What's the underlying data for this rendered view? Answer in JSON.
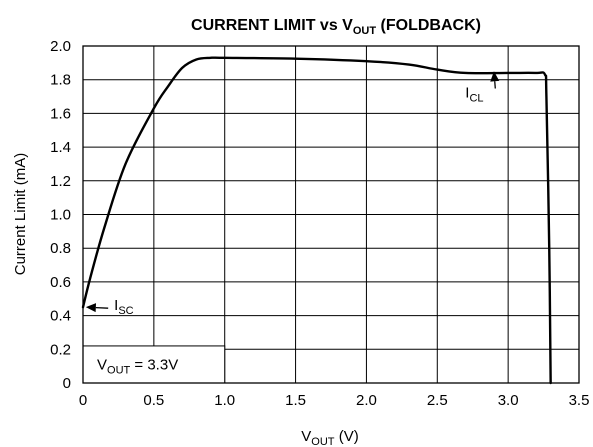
{
  "chart_data": {
    "type": "line",
    "title": {
      "main": "CURRENT LIMIT vs V",
      "sub": "OUT",
      "suffix": " (FOLDBACK)"
    },
    "xlabel": {
      "main": "V",
      "sub": "OUT",
      "suffix": " (V)"
    },
    "ylabel": "Current Limit (mA)",
    "xlim": [
      0,
      3.5
    ],
    "ylim": [
      0,
      2.0
    ],
    "x_ticks": [
      "0",
      "0.5",
      "1.0",
      "1.5",
      "2.0",
      "2.5",
      "3.0",
      "3.5"
    ],
    "y_ticks": [
      "0",
      "0.2",
      "0.4",
      "0.6",
      "0.8",
      "1.0",
      "1.2",
      "1.4",
      "1.6",
      "1.8",
      "2.0"
    ],
    "grid": true,
    "series": [
      {
        "x": [
          0,
          0.05,
          0.15,
          0.3,
          0.5,
          0.6,
          0.7,
          0.8,
          0.9,
          1.0,
          1.5,
          2.0,
          2.3,
          2.5,
          2.7,
          3.0,
          3.2,
          3.26,
          3.27,
          3.29,
          3.3
        ],
        "y": [
          0.45,
          0.62,
          0.92,
          1.3,
          1.63,
          1.76,
          1.87,
          1.92,
          1.93,
          1.93,
          1.925,
          1.91,
          1.89,
          1.86,
          1.84,
          1.84,
          1.84,
          1.83,
          1.7,
          0.8,
          0
        ]
      }
    ],
    "annotations": [
      {
        "main": "I",
        "sub": "SC",
        "x": 0.02,
        "y": 0.45,
        "label_x": 0.22,
        "label_y": 0.45
      },
      {
        "main": "I",
        "sub": "CL",
        "x": 2.9,
        "y": 1.85,
        "label_x": 2.74,
        "label_y": 1.73
      },
      {
        "main": "V",
        "sub": "OUT",
        "suffix": " = 3.3V",
        "x": 0.1,
        "y": 0.11,
        "boxed": true
      }
    ]
  }
}
